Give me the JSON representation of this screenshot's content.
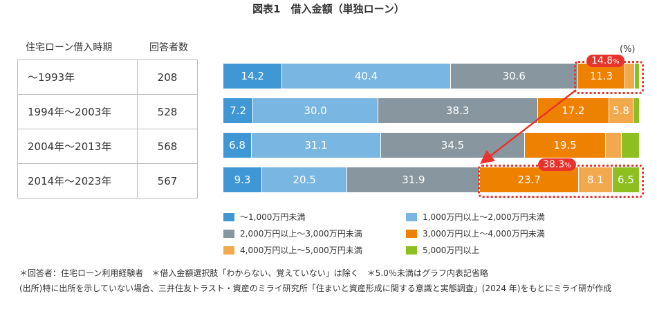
{
  "chart_data": {
    "type": "bar",
    "orientation": "horizontal-stacked-100",
    "title": "図表1　借入金額（単独ローン）",
    "unit": "(%)",
    "table_headers": [
      "住宅ローン借入時期",
      "回答者数"
    ],
    "categories": [
      "〜1993年",
      "1994年〜2003年",
      "2004年〜2013年",
      "2014年〜2023年"
    ],
    "respondents": [
      "208",
      "528",
      "568",
      "567"
    ],
    "series": [
      {
        "name": "〜1,000万円未満",
        "color": "#3f98d5",
        "values": [
          14.2,
          7.2,
          6.8,
          9.3
        ],
        "labels": [
          "14.2",
          "7.2",
          "6.8",
          "9.3"
        ]
      },
      {
        "name": "1,000万円以上〜2,000万円未満",
        "color": "#7ab6e2",
        "values": [
          40.4,
          30.0,
          31.1,
          20.5
        ],
        "labels": [
          "40.4",
          "30.0",
          "31.1",
          "20.5"
        ]
      },
      {
        "name": "2,000万円以上〜3,000万円未満",
        "color": "#87969f",
        "values": [
          30.6,
          38.3,
          34.5,
          31.9
        ],
        "labels": [
          "30.6",
          "38.3",
          "34.5",
          "31.9"
        ]
      },
      {
        "name": "3,000万円以上〜4,000万円未満",
        "color": "#ee8100",
        "values": [
          11.3,
          17.2,
          19.5,
          23.7
        ],
        "labels": [
          "11.3",
          "17.2",
          "19.5",
          "23.7"
        ]
      },
      {
        "name": "4,000万円以上〜5,000万円未満",
        "color": "#f2a84c",
        "values": [
          2.3,
          5.8,
          3.7,
          8.1
        ],
        "labels": [
          "",
          "5.8",
          "",
          "8.1"
        ]
      },
      {
        "name": "5,000万円以上",
        "color": "#8cbf1f",
        "values": [
          1.2,
          1.5,
          4.4,
          6.5
        ],
        "labels": [
          "",
          "",
          "",
          "6.5"
        ]
      }
    ],
    "annotations": [
      {
        "text": "14.8",
        "suffix": "%"
      },
      {
        "text": "38.3",
        "suffix": "%"
      }
    ],
    "highlight_color": "#e8332a"
  },
  "notes": [
    "＊回答者：住宅ローン利用経験者　＊借入金額選択肢「わからない、覚えていない」は除く　＊5.0％未満はグラフ内表記省略",
    "(出所)特に出所を示していない場合、三井住友トラスト・資産のミライ研究所「住まいと資産形成に関する意識と実態調査」(2024 年)をもとにミライ研が作成"
  ]
}
